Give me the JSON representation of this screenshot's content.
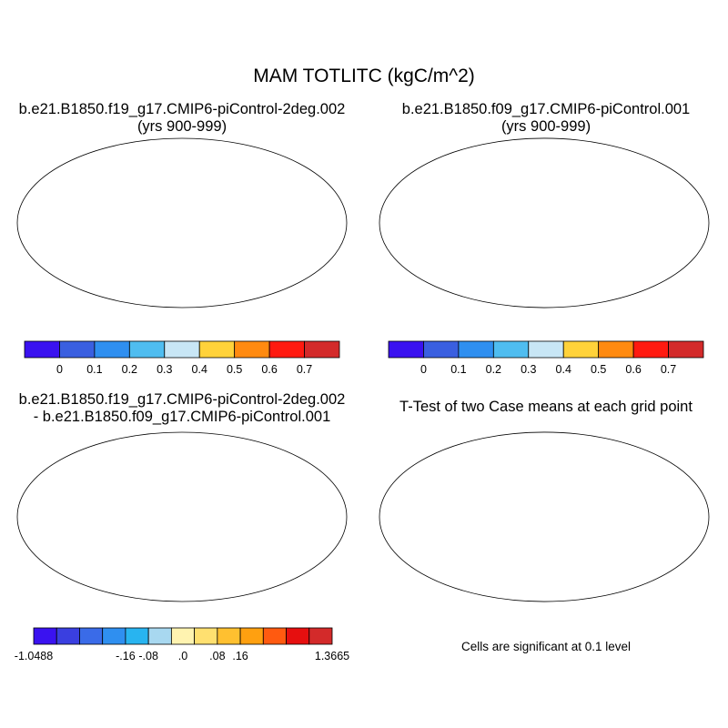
{
  "title": "MAM TOTLITC (kgC/m^2)",
  "panels": [
    {
      "id": "p1",
      "title_line1": "b.e21.B1850.f19_g17.CMIP6-piControl-2deg.002",
      "title_line2": "(yrs 900-999)"
    },
    {
      "id": "p2",
      "title_line1": "b.e21.B1850.f09_g17.CMIP6-piControl.001",
      "title_line2": "(yrs 900-999)"
    },
    {
      "id": "p3",
      "title_line1": "b.e21.B1850.f19_g17.CMIP6-piControl-2deg.002",
      "title_line2": "- b.e21.B1850.f09_g17.CMIP6-piControl.001"
    },
    {
      "id": "p4",
      "title_line1": "T-Test of two Case means at each grid point",
      "title_line2": ""
    }
  ],
  "colorbar_abs": {
    "colors": [
      "#3a12f0",
      "#3a5fe0",
      "#2f8ff0",
      "#4fbdf0",
      "#c8e6f5",
      "#ffd23a",
      "#ff8a10",
      "#ff1a10",
      "#d32a2a"
    ],
    "labels": [
      "0",
      "0.1",
      "0.2",
      "0.3",
      "0.4",
      "0.5",
      "0.6",
      "0.7"
    ]
  },
  "colorbar_diff": {
    "colors": [
      "#3a12f0",
      "#3a3fe0",
      "#3a6be8",
      "#2f8ff0",
      "#28b4f0",
      "#a8d8f0",
      "#fff3b0",
      "#ffe070",
      "#ffc030",
      "#ffa010",
      "#ff5a10",
      "#e60f0f",
      "#d32a2a"
    ],
    "labels": [
      "-1.0488",
      "-.16",
      "-.08",
      ".0",
      ".08",
      ".16",
      "1.3665"
    ]
  },
  "colors": {
    "ocean": "#ffffff",
    "significant": "#ee0000"
  },
  "significance_note": "Cells are significant at 0.1 level"
}
